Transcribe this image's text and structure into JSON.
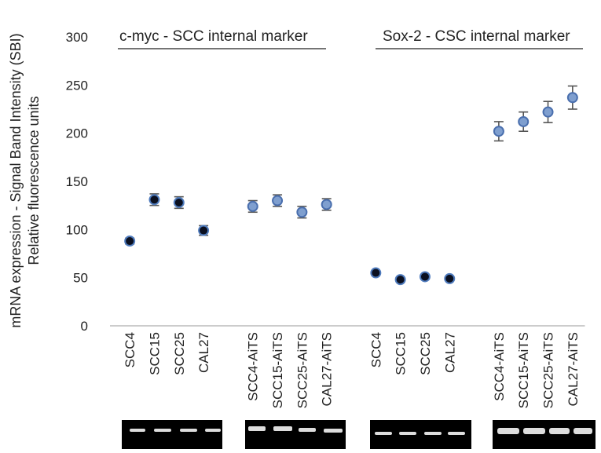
{
  "chart_data": {
    "type": "scatter",
    "y_label_lines": [
      "mRNA expression - Signal Band Intensity (SBI)",
      "Relative fluorescence units"
    ],
    "annotations": [
      "c-myc - SCC internal marker",
      "Sox-2 - CSC internal marker"
    ],
    "categories": [
      "SCC4",
      "SCC15",
      "SCC25",
      "CAL27",
      null,
      "SCC4-AiTS",
      "SCC15-AiTS",
      "SCC25-AiTS",
      "CAL27-AiTS",
      null,
      "SCC4",
      "SCC15",
      "SCC25",
      "CAL27",
      null,
      "SCC4-AiTS",
      "SCC15-AiTS",
      "SCC25-AiTS",
      "CAL27-AiTS"
    ],
    "series": [
      {
        "color": "#0b1020",
        "edge": "#4f7bbd",
        "values": [
          88,
          131,
          128,
          99,
          null,
          null,
          null,
          null,
          null,
          null,
          55,
          48,
          51,
          49,
          null,
          null,
          null,
          null,
          null
        ],
        "errors": [
          3,
          6,
          6,
          5,
          null,
          null,
          null,
          null,
          null,
          null,
          1,
          1,
          1,
          1,
          null,
          null,
          null,
          null,
          null
        ]
      },
      {
        "color": "#7f9fcf",
        "edge": "#4a6fae",
        "values": [
          null,
          null,
          null,
          null,
          null,
          124,
          130,
          118,
          126,
          null,
          null,
          null,
          null,
          null,
          null,
          202,
          212,
          222,
          237
        ],
        "errors": [
          null,
          null,
          null,
          null,
          null,
          6,
          6,
          6,
          6,
          null,
          null,
          null,
          null,
          null,
          null,
          10,
          10,
          11,
          12
        ]
      }
    ],
    "ylim": [
      0,
      300
    ],
    "yticks": [
      0,
      50,
      100,
      150,
      200,
      250,
      300
    ]
  }
}
